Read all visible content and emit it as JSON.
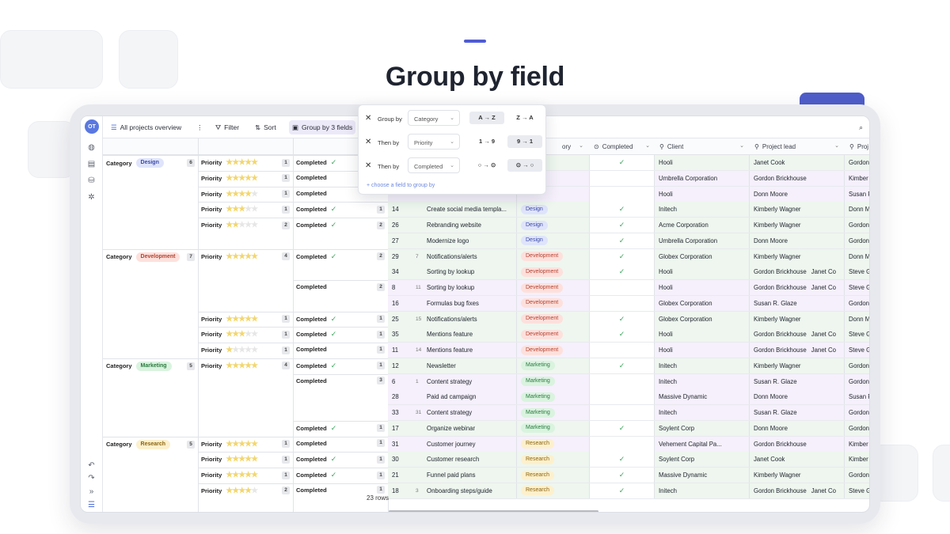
{
  "hero": {
    "title": "Group by field"
  },
  "colors": {
    "accent": "#4f5bd5",
    "tab_blue": "#4e5dc9",
    "tab_cyan": "#2cbfec"
  },
  "rail": {
    "avatar_initials": "OT"
  },
  "toolbar": {
    "view_name": "All projects overview",
    "more_icon": "⋮",
    "filter_label": "Filter",
    "sort_label": "Sort",
    "group_label": "Group by 3 fields"
  },
  "popover": {
    "rows": [
      {
        "label": "Group by",
        "field": "Category",
        "opt1": "A → Z",
        "opt2": "Z → A",
        "active": 1
      },
      {
        "label": "Then by",
        "field": "Priority",
        "opt1": "1 → 9",
        "opt2": "9 → 1",
        "active": 2
      },
      {
        "label": "Then by",
        "field": "Completed",
        "opt1": "○ → ⊙",
        "opt2": "⊙ → ○",
        "active": 2
      }
    ],
    "add_label": "choose a field to group by"
  },
  "headers": {
    "category_partial": "ory",
    "completed": "Completed",
    "client": "Client",
    "project_lead": "Project lead",
    "project_partial": "Proj"
  },
  "groups": {
    "category": [
      {
        "label": "Category",
        "value": "Design",
        "count": "6"
      },
      {
        "label": "Category",
        "value": "Development",
        "count": "7"
      },
      {
        "label": "Category",
        "value": "Marketing",
        "count": "5"
      },
      {
        "label": "Category",
        "value": "Research",
        "count": "5"
      }
    ],
    "priority": [
      {
        "label": "Priority",
        "stars": 5,
        "count": "1"
      },
      {
        "label": "Priority",
        "stars": 5,
        "count": "1"
      },
      {
        "label": "Priority",
        "stars": 4,
        "count": "1"
      },
      {
        "label": "Priority",
        "stars": 3,
        "count": "1"
      },
      {
        "label": "Priority",
        "stars": 2,
        "count": "2"
      },
      {
        "label": "Priority",
        "stars": 5,
        "count": "4"
      },
      {
        "label": "Priority",
        "stars": 5,
        "count": "1"
      },
      {
        "label": "Priority",
        "stars": 3,
        "count": "1"
      },
      {
        "label": "Priority",
        "stars": 1,
        "count": "1"
      },
      {
        "label": "Priority",
        "stars": 5,
        "count": "4"
      },
      {
        "label": "Priority",
        "stars": 5,
        "count": "1"
      },
      {
        "label": "Priority",
        "stars": 5,
        "count": "1"
      },
      {
        "label": "Priority",
        "stars": 5,
        "count": "1"
      },
      {
        "label": "Priority",
        "stars": 4,
        "count": "2"
      }
    ],
    "completed": [
      {
        "label": "Completed",
        "check": true,
        "count": ""
      },
      {
        "label": "Completed",
        "check": false,
        "count": ""
      },
      {
        "label": "Completed",
        "check": false,
        "count": ""
      },
      {
        "label": "Completed",
        "check": true,
        "count": "1"
      },
      {
        "label": "Completed",
        "check": true,
        "count": "2"
      },
      {
        "label": "Completed",
        "check": true,
        "count": "2"
      },
      {
        "label": "Completed",
        "check": false,
        "count": "2"
      },
      {
        "label": "Completed",
        "check": true,
        "count": "1"
      },
      {
        "label": "Completed",
        "check": true,
        "count": "1"
      },
      {
        "label": "Completed",
        "check": false,
        "count": "1"
      },
      {
        "label": "Completed",
        "check": true,
        "count": "1"
      },
      {
        "label": "Completed",
        "check": false,
        "count": "3"
      },
      {
        "label": "Completed",
        "check": true,
        "count": "1"
      },
      {
        "label": "Completed",
        "check": false,
        "count": "1"
      },
      {
        "label": "Completed",
        "check": true,
        "count": "1"
      },
      {
        "label": "Completed",
        "check": true,
        "count": "1"
      },
      {
        "label": "Completed",
        "check": false,
        "count": "1"
      }
    ]
  },
  "rows": [
    {
      "id": "",
      "num": "",
      "name": "",
      "cat": "",
      "done": true,
      "client": "Hooli",
      "lead": "Janet Cook",
      "lead2": "",
      "proj": "Gordon"
    },
    {
      "id": "",
      "num": "",
      "name": "",
      "cat": "",
      "done": false,
      "client": "Umbrella Corporation",
      "lead": "Gordon Brickhouse",
      "lead2": "",
      "proj": "Kimber"
    },
    {
      "id": "",
      "num": "",
      "name": "",
      "cat": "",
      "done": false,
      "client": "Hooli",
      "lead": "Donn Moore",
      "lead2": "",
      "proj": "Susan F"
    },
    {
      "id": "14",
      "num": "",
      "name": "Create social media templa...",
      "cat": "Design",
      "done": true,
      "client": "Initech",
      "lead": "Kimberly Wagner",
      "lead2": "",
      "proj": "Donn M"
    },
    {
      "id": "26",
      "num": "",
      "name": "Rebranding website",
      "cat": "Design",
      "done": true,
      "client": "Acme Corporation",
      "lead": "Kimberly Wagner",
      "lead2": "",
      "proj": "Gordon"
    },
    {
      "id": "27",
      "num": "",
      "name": "Modernize logo",
      "cat": "Design",
      "done": true,
      "client": "Umbrella Corporation",
      "lead": "Donn Moore",
      "lead2": "",
      "proj": "Gordon"
    },
    {
      "id": "29",
      "num": "7",
      "name": "Notifications/alerts",
      "cat": "Development",
      "done": true,
      "client": "Globex Corporation",
      "lead": "Kimberly Wagner",
      "lead2": "",
      "proj": "Donn M"
    },
    {
      "id": "34",
      "num": "",
      "name": "Sorting by lookup",
      "cat": "Development",
      "done": true,
      "client": "Hooli",
      "lead": "Gordon Brickhouse",
      "lead2": "Janet Co",
      "proj": "Steve G"
    },
    {
      "id": "8",
      "num": "11",
      "name": "Sorting by lookup",
      "cat": "Development",
      "done": false,
      "client": "Hooli",
      "lead": "Gordon Brickhouse",
      "lead2": "Janet Co",
      "proj": "Steve G"
    },
    {
      "id": "16",
      "num": "",
      "name": "Formulas bug fixes",
      "cat": "Development",
      "done": false,
      "client": "Globex Corporation",
      "lead": "Susan R. Glaze",
      "lead2": "",
      "proj": "Gordon"
    },
    {
      "id": "25",
      "num": "15",
      "name": "Notifications/alerts",
      "cat": "Development",
      "done": true,
      "client": "Globex Corporation",
      "lead": "Kimberly Wagner",
      "lead2": "",
      "proj": "Donn M"
    },
    {
      "id": "35",
      "num": "",
      "name": "Mentions feature",
      "cat": "Development",
      "done": true,
      "client": "Hooli",
      "lead": "Gordon Brickhouse",
      "lead2": "Janet Co",
      "proj": "Steve G"
    },
    {
      "id": "11",
      "num": "14",
      "name": "Mentions feature",
      "cat": "Development",
      "done": false,
      "client": "Hooli",
      "lead": "Gordon Brickhouse",
      "lead2": "Janet Co",
      "proj": "Steve G"
    },
    {
      "id": "12",
      "num": "",
      "name": "Newsletter",
      "cat": "Marketing",
      "done": true,
      "client": "Initech",
      "lead": "Kimberly Wagner",
      "lead2": "",
      "proj": "Gordon"
    },
    {
      "id": "6",
      "num": "1",
      "name": "Content strategy",
      "cat": "Marketing",
      "done": false,
      "client": "Initech",
      "lead": "Susan R. Glaze",
      "lead2": "",
      "proj": "Gordon"
    },
    {
      "id": "28",
      "num": "",
      "name": "Paid ad campaign",
      "cat": "Marketing",
      "done": false,
      "client": "Massive Dynamic",
      "lead": "Donn Moore",
      "lead2": "",
      "proj": "Susan F"
    },
    {
      "id": "33",
      "num": "31",
      "name": "Content strategy",
      "cat": "Marketing",
      "done": false,
      "client": "Initech",
      "lead": "Susan R. Glaze",
      "lead2": "",
      "proj": "Gordon"
    },
    {
      "id": "17",
      "num": "",
      "name": "Organize webinar",
      "cat": "Marketing",
      "done": true,
      "client": "Soylent Corp",
      "lead": "Donn Moore",
      "lead2": "",
      "proj": "Gordon"
    },
    {
      "id": "31",
      "num": "",
      "name": "Customer journey",
      "cat": "Research",
      "done": false,
      "client": "Vehement Capital Pa...",
      "lead": "Gordon Brickhouse",
      "lead2": "",
      "proj": "Kimber"
    },
    {
      "id": "30",
      "num": "",
      "name": "Customer research",
      "cat": "Research",
      "done": true,
      "client": "Soylent Corp",
      "lead": "Janet Cook",
      "lead2": "",
      "proj": "Kimber"
    },
    {
      "id": "21",
      "num": "",
      "name": "Funnel paid plans",
      "cat": "Research",
      "done": true,
      "client": "Massive Dynamic",
      "lead": "Kimberly Wagner",
      "lead2": "",
      "proj": "Gordon"
    },
    {
      "id": "18",
      "num": "3",
      "name": "Onboarding steps/guide",
      "cat": "Research",
      "done": true,
      "client": "Initech",
      "lead": "Gordon Brickhouse",
      "lead2": "Janet Co",
      "proj": "Steve G"
    }
  ],
  "footer": {
    "row_count": "23 rows"
  }
}
